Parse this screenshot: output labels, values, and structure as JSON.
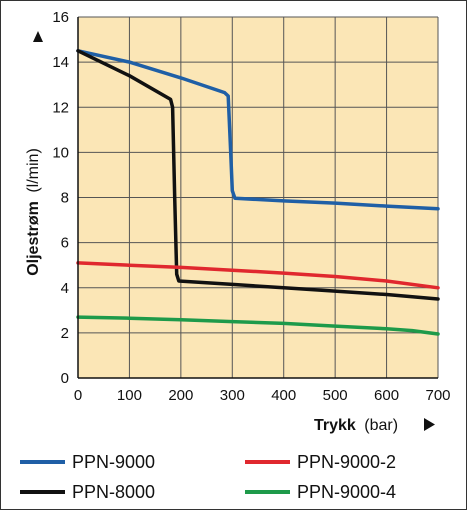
{
  "chart_data": {
    "type": "line",
    "xlabel_bold": "Trykk",
    "xlabel_unit": "(bar)",
    "ylabel_bold": "Oljestrøm",
    "ylabel_unit": "(l/min)",
    "xlim": [
      0,
      700
    ],
    "ylim": [
      0,
      16
    ],
    "x_ticks": [
      0,
      100,
      200,
      300,
      400,
      500,
      600,
      700
    ],
    "y_ticks": [
      0,
      2,
      4,
      6,
      8,
      10,
      12,
      14,
      16
    ],
    "grid": true,
    "legend_position": "bottom",
    "series": [
      {
        "name": "PPN-9000",
        "color": "#1f5fa6",
        "points": [
          [
            0,
            14.5
          ],
          [
            100,
            14.0
          ],
          [
            200,
            13.3
          ],
          [
            285,
            12.65
          ],
          [
            292,
            12.5
          ],
          [
            297,
            10.0
          ],
          [
            300,
            8.3
          ],
          [
            305,
            7.97
          ],
          [
            400,
            7.85
          ],
          [
            500,
            7.75
          ],
          [
            600,
            7.62
          ],
          [
            700,
            7.5
          ]
        ]
      },
      {
        "name": "PPN-8000",
        "color": "#111111",
        "points": [
          [
            0,
            14.5
          ],
          [
            100,
            13.4
          ],
          [
            180,
            12.35
          ],
          [
            184,
            12.0
          ],
          [
            188,
            8.0
          ],
          [
            192,
            4.6
          ],
          [
            196,
            4.3
          ],
          [
            300,
            4.15
          ],
          [
            400,
            4.0
          ],
          [
            500,
            3.85
          ],
          [
            600,
            3.7
          ],
          [
            700,
            3.5
          ]
        ]
      },
      {
        "name": "PPN-9000-2",
        "color": "#e0282e",
        "points": [
          [
            0,
            5.1
          ],
          [
            100,
            5.0
          ],
          [
            200,
            4.9
          ],
          [
            300,
            4.78
          ],
          [
            400,
            4.65
          ],
          [
            500,
            4.5
          ],
          [
            600,
            4.3
          ],
          [
            700,
            4.0
          ]
        ]
      },
      {
        "name": "PPN-9000-4",
        "color": "#1e9a4a",
        "points": [
          [
            0,
            2.7
          ],
          [
            100,
            2.65
          ],
          [
            200,
            2.58
          ],
          [
            300,
            2.5
          ],
          [
            400,
            2.42
          ],
          [
            500,
            2.3
          ],
          [
            600,
            2.18
          ],
          [
            650,
            2.1
          ],
          [
            700,
            1.95
          ]
        ]
      }
    ]
  },
  "style": {
    "plot_background": "#fbe6b6",
    "grid_color": "#555555"
  }
}
